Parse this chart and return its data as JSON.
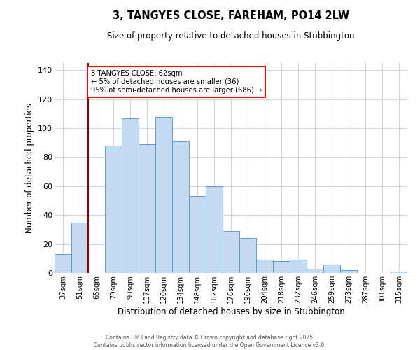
{
  "title": "3, TANGYES CLOSE, FAREHAM, PO14 2LW",
  "subtitle": "Size of property relative to detached houses in Stubbington",
  "xlabel": "Distribution of detached houses by size in Stubbington",
  "ylabel": "Number of detached properties",
  "categories": [
    "37sqm",
    "51sqm",
    "65sqm",
    "79sqm",
    "93sqm",
    "107sqm",
    "120sqm",
    "134sqm",
    "148sqm",
    "162sqm",
    "176sqm",
    "190sqm",
    "204sqm",
    "218sqm",
    "232sqm",
    "246sqm",
    "259sqm",
    "273sqm",
    "287sqm",
    "301sqm",
    "315sqm"
  ],
  "values": [
    13,
    35,
    0,
    88,
    107,
    89,
    108,
    91,
    53,
    60,
    29,
    24,
    9,
    8,
    9,
    3,
    6,
    2,
    0,
    0,
    1
  ],
  "bar_color": "#c5d9f1",
  "bar_edge_color": "#5b9bd5",
  "background_color": "#ffffff",
  "grid_color": "#d0d8e4",
  "ylim": [
    0,
    145
  ],
  "yticks": [
    0,
    20,
    40,
    60,
    80,
    100,
    120,
    140
  ],
  "red_line_index": 2,
  "annotation_text_line1": "3 TANGYES CLOSE: 62sqm",
  "annotation_text_line2": "← 5% of detached houses are smaller (36)",
  "annotation_text_line3": "95% of semi-detached houses are larger (686) →",
  "footnote1": "Contains HM Land Registry data © Crown copyright and database right 2025.",
  "footnote2": "Contains public sector information licensed under the Open Government Licence v3.0."
}
